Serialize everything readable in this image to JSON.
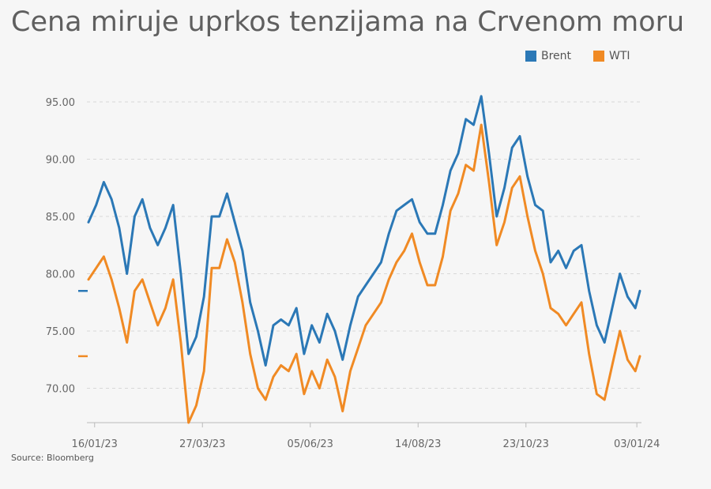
{
  "title": "Cena miruje uprkos tenzijama na Crvenom moru",
  "source": "Source: Bloomberg",
  "colors": {
    "brent": "#2b78b6",
    "wti": "#f08a24",
    "grid": "#d8d8d8",
    "text": "#666666"
  },
  "chart_data": {
    "type": "line",
    "title": "Cena miruje uprkos tenzijama na Crvenom moru",
    "xlabel": "",
    "ylabel": "",
    "ylim": [
      67,
      97
    ],
    "yticks": [
      "95.00",
      "90.00",
      "85.00",
      "80.00",
      "75.00",
      "70.00"
    ],
    "xticks": [
      "16/01/23",
      "27/03/23",
      "05/06/23",
      "14/08/23",
      "23/10/23",
      "03/01/24"
    ],
    "x_range": [
      "2023-01-11",
      "2024-01-06"
    ],
    "grid": true,
    "legend_position": "top-right",
    "series": [
      {
        "name": "Brent",
        "dates": [
          "2023-01-12",
          "2023-01-17",
          "2023-01-22",
          "2023-01-27",
          "2023-02-01",
          "2023-02-06",
          "2023-02-11",
          "2023-02-16",
          "2023-02-21",
          "2023-02-26",
          "2023-03-03",
          "2023-03-08",
          "2023-03-13",
          "2023-03-18",
          "2023-03-23",
          "2023-03-28",
          "2023-04-02",
          "2023-04-07",
          "2023-04-12",
          "2023-04-17",
          "2023-04-22",
          "2023-04-27",
          "2023-05-02",
          "2023-05-07",
          "2023-05-12",
          "2023-05-17",
          "2023-05-22",
          "2023-05-27",
          "2023-06-01",
          "2023-06-06",
          "2023-06-11",
          "2023-06-16",
          "2023-06-21",
          "2023-06-26",
          "2023-07-01",
          "2023-07-06",
          "2023-07-11",
          "2023-07-16",
          "2023-07-21",
          "2023-07-26",
          "2023-07-31",
          "2023-08-05",
          "2023-08-10",
          "2023-08-15",
          "2023-08-20",
          "2023-08-25",
          "2023-08-30",
          "2023-09-04",
          "2023-09-09",
          "2023-09-14",
          "2023-09-19",
          "2023-09-24",
          "2023-09-29",
          "2023-10-04",
          "2023-10-09",
          "2023-10-14",
          "2023-10-19",
          "2023-10-24",
          "2023-10-29",
          "2023-11-03",
          "2023-11-08",
          "2023-11-13",
          "2023-11-18",
          "2023-11-23",
          "2023-11-28",
          "2023-12-03",
          "2023-12-08",
          "2023-12-13",
          "2023-12-18",
          "2023-12-23",
          "2023-12-28",
          "2024-01-02",
          "2024-01-05"
        ],
        "values": [
          84.5,
          86.0,
          88.0,
          86.5,
          84.0,
          80.0,
          85.0,
          86.5,
          84.0,
          82.5,
          84.0,
          86.0,
          80.0,
          73.0,
          74.5,
          78.0,
          85.0,
          85.0,
          87.0,
          84.5,
          82.0,
          77.5,
          75.0,
          72.0,
          75.5,
          76.0,
          75.5,
          77.0,
          73.0,
          75.5,
          74.0,
          76.5,
          75.0,
          72.5,
          75.5,
          78.0,
          79.0,
          80.0,
          81.0,
          83.5,
          85.5,
          86.0,
          86.5,
          84.5,
          83.5,
          83.5,
          86.0,
          89.0,
          90.5,
          93.5,
          93.0,
          95.5,
          90.5,
          85.0,
          87.5,
          91.0,
          92.0,
          88.5,
          86.0,
          85.5,
          81.0,
          82.0,
          80.5,
          82.0,
          82.5,
          78.5,
          75.5,
          74.0,
          77.0,
          80.0,
          78.0,
          77.0,
          78.5
        ]
      },
      {
        "name": "WTI",
        "dates": [
          "2023-01-12",
          "2023-01-17",
          "2023-01-22",
          "2023-01-27",
          "2023-02-01",
          "2023-02-06",
          "2023-02-11",
          "2023-02-16",
          "2023-02-21",
          "2023-02-26",
          "2023-03-03",
          "2023-03-08",
          "2023-03-13",
          "2023-03-18",
          "2023-03-23",
          "2023-03-28",
          "2023-04-02",
          "2023-04-07",
          "2023-04-12",
          "2023-04-17",
          "2023-04-22",
          "2023-04-27",
          "2023-05-02",
          "2023-05-07",
          "2023-05-12",
          "2023-05-17",
          "2023-05-22",
          "2023-05-27",
          "2023-06-01",
          "2023-06-06",
          "2023-06-11",
          "2023-06-16",
          "2023-06-21",
          "2023-06-26",
          "2023-07-01",
          "2023-07-06",
          "2023-07-11",
          "2023-07-16",
          "2023-07-21",
          "2023-07-26",
          "2023-07-31",
          "2023-08-05",
          "2023-08-10",
          "2023-08-15",
          "2023-08-20",
          "2023-08-25",
          "2023-08-30",
          "2023-09-04",
          "2023-09-09",
          "2023-09-14",
          "2023-09-19",
          "2023-09-24",
          "2023-09-29",
          "2023-10-04",
          "2023-10-09",
          "2023-10-14",
          "2023-10-19",
          "2023-10-24",
          "2023-10-29",
          "2023-11-03",
          "2023-11-08",
          "2023-11-13",
          "2023-11-18",
          "2023-11-23",
          "2023-11-28",
          "2023-12-03",
          "2023-12-08",
          "2023-12-13",
          "2023-12-18",
          "2023-12-23",
          "2023-12-28",
          "2024-01-02",
          "2024-01-05"
        ],
        "values": [
          79.5,
          80.5,
          81.5,
          79.5,
          77.0,
          74.0,
          78.5,
          79.5,
          77.5,
          75.5,
          77.0,
          79.5,
          74.0,
          67.0,
          68.5,
          71.5,
          80.5,
          80.5,
          83.0,
          81.0,
          77.5,
          73.0,
          70.0,
          69.0,
          71.0,
          72.0,
          71.5,
          73.0,
          69.5,
          71.5,
          70.0,
          72.5,
          71.0,
          68.0,
          71.5,
          73.5,
          75.5,
          76.5,
          77.5,
          79.5,
          81.0,
          82.0,
          83.5,
          81.0,
          79.0,
          79.0,
          81.5,
          85.5,
          87.0,
          89.5,
          89.0,
          93.0,
          88.0,
          82.5,
          84.5,
          87.5,
          88.5,
          85.0,
          82.0,
          80.0,
          77.0,
          76.5,
          75.5,
          76.5,
          77.5,
          73.0,
          69.5,
          69.0,
          72.0,
          75.0,
          72.5,
          71.5,
          72.8
        ]
      }
    ]
  }
}
